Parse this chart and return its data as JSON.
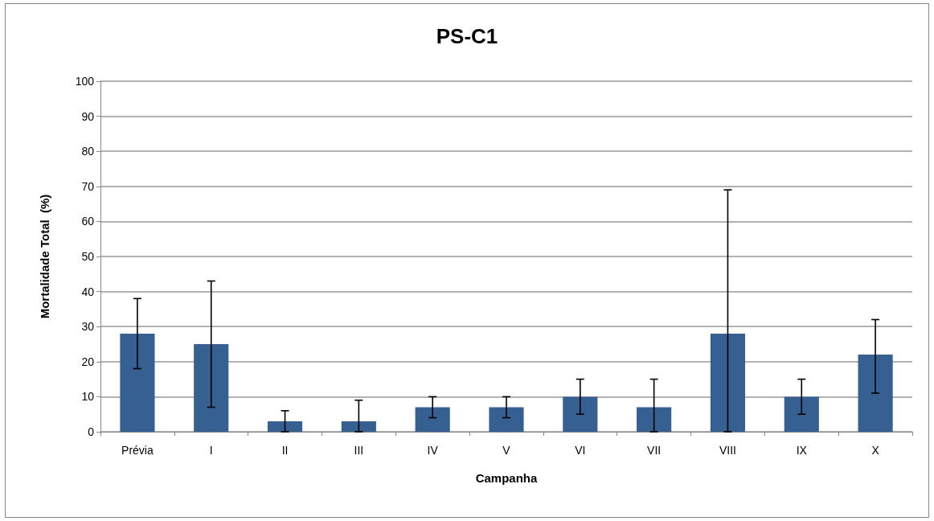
{
  "chart_data": {
    "type": "bar",
    "title": "PS-C1",
    "xlabel": "Campanha",
    "ylabel": "Mortalidade Total  (%)",
    "categories": [
      "Prévia",
      "I",
      "II",
      "III",
      "IV",
      "V",
      "VI",
      "VII",
      "VIII",
      "IX",
      "X"
    ],
    "series": [
      {
        "color": "#376092",
        "values": [
          28,
          25,
          3,
          3,
          7,
          7,
          10,
          7,
          28,
          10,
          22
        ],
        "errors": [
          [
            18,
            38
          ],
          [
            7,
            43
          ],
          [
            0,
            6
          ],
          [
            0,
            9
          ],
          [
            4,
            10
          ],
          [
            4,
            10
          ],
          [
            5,
            15
          ],
          [
            0,
            15
          ],
          [
            0,
            69
          ],
          [
            5,
            15
          ],
          [
            11,
            32
          ]
        ]
      }
    ],
    "ylim": [
      0,
      100
    ],
    "yticks": [
      0,
      10,
      20,
      30,
      40,
      50,
      60,
      70,
      80,
      90,
      100
    ],
    "grid": "y"
  }
}
